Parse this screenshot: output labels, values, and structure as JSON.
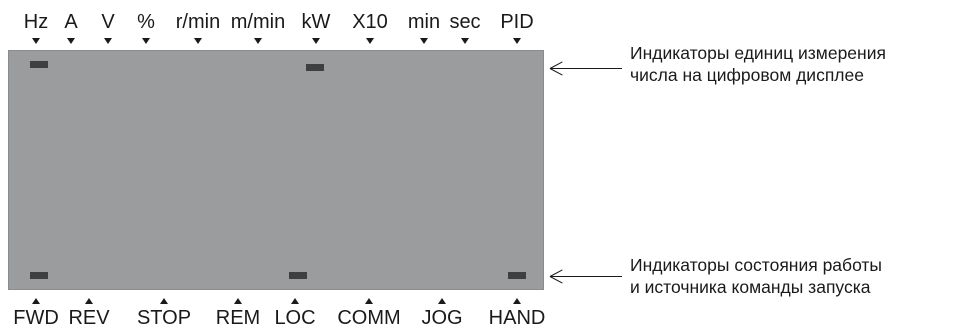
{
  "units_labels": [
    "Hz",
    "A",
    "V",
    "%",
    "r/min",
    "m/min",
    "kW",
    "X10",
    "min",
    "sec",
    "PID"
  ],
  "status_labels": [
    "FWD",
    "REV",
    "STOP",
    "REM",
    "LOC",
    "COMM",
    "JOG",
    "HAND"
  ],
  "callouts": {
    "units": {
      "line1": "Индикаторы единиц измерения",
      "line2": "числа на цифровом дисплее"
    },
    "status": {
      "line1": "Индикаторы состояния работы",
      "line2": "и источника команды запуска"
    }
  },
  "colors": {
    "display": "#9b9c9e",
    "indicator": "#3e3f41",
    "text": "#1a1a1a"
  }
}
